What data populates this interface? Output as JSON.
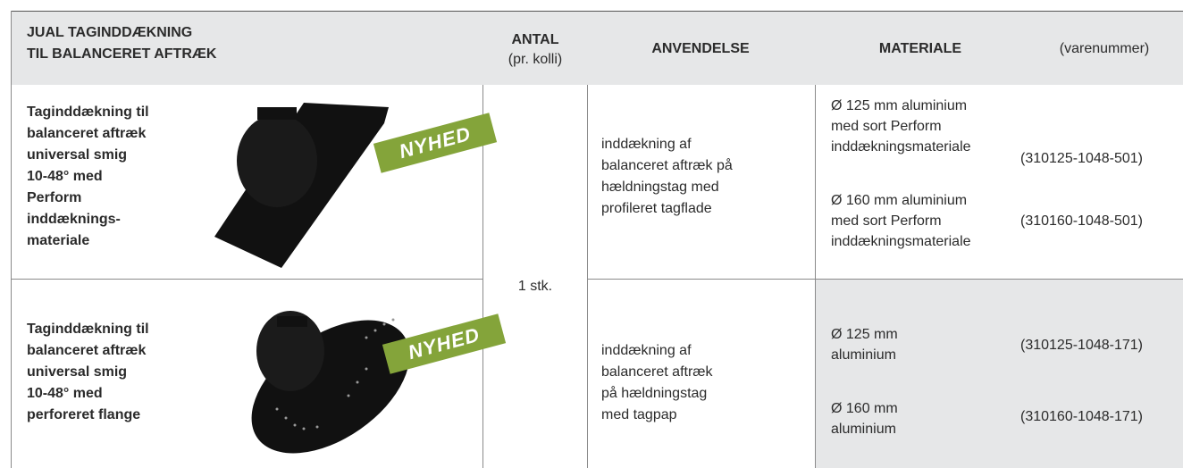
{
  "header": {
    "columns": [
      [
        "JUAL TAGINDDÆKNING",
        "TIL BALANCERET AFTRÆK"
      ],
      [
        "ANTAL",
        "(pr. kolli)"
      ],
      [
        "ANVENDELSE"
      ],
      [
        "MATERIALE"
      ],
      [
        "(varenummer)"
      ]
    ]
  },
  "quantity": "1 stk.",
  "rows": [
    {
      "name": [
        "Taginddækning til",
        "balanceret aftræk",
        "universal smig",
        "10-48° med",
        "Perform",
        "inddæknings-",
        "materiale"
      ],
      "badge": "NYHED",
      "use": [
        "inddækning af",
        "balanceret aftræk på",
        "hældningstag med",
        "profileret tagflade"
      ],
      "materials": [
        [
          "Ø 125 mm aluminium",
          "med sort Perform",
          "inddækningsmateriale"
        ],
        [
          "Ø 160 mm aluminium",
          "med sort Perform",
          "inddækningsmateriale"
        ]
      ],
      "item_numbers": [
        "(310125-1048-501)",
        "(310160-1048-501)"
      ]
    },
    {
      "name": [
        "Taginddækning til",
        "balanceret aftræk",
        "universal smig",
        "10-48° med",
        "perforeret flange"
      ],
      "badge": "NYHED",
      "use": [
        "inddækning af",
        "balanceret aftræk",
        "på hældningstag",
        "med tagpap"
      ],
      "materials": [
        [
          "Ø 125 mm",
          "aluminium"
        ],
        [
          "Ø 160 mm",
          "aluminium"
        ]
      ],
      "item_numbers": [
        "(310125-1048-171)",
        "(310160-1048-171)"
      ]
    }
  ]
}
